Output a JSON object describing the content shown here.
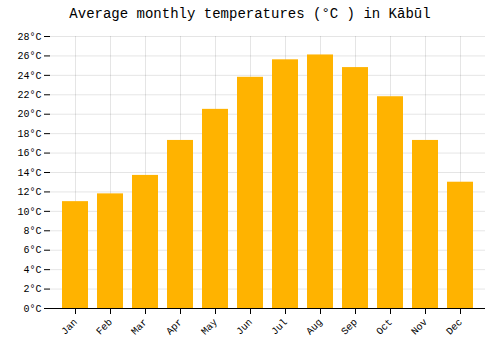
{
  "chart_data": {
    "type": "bar",
    "title": "Average monthly temperatures (°C ) in Kābūl",
    "categories": [
      "Jan",
      "Feb",
      "Mar",
      "Apr",
      "May",
      "Jun",
      "Jul",
      "Aug",
      "Sep",
      "Oct",
      "Nov",
      "Dec"
    ],
    "values": [
      11.0,
      11.8,
      13.7,
      17.3,
      20.5,
      23.8,
      25.6,
      26.1,
      24.8,
      21.8,
      17.3,
      13.0
    ],
    "color": "#FFB300",
    "ylim": [
      0,
      28
    ],
    "yticks": [
      {
        "value": 0,
        "label": "0°C"
      },
      {
        "value": 2,
        "label": "2°C"
      },
      {
        "value": 4,
        "label": "4°C"
      },
      {
        "value": 6,
        "label": "6°C"
      },
      {
        "value": 8,
        "label": "8°C"
      },
      {
        "value": 10,
        "label": "10°C"
      },
      {
        "value": 12,
        "label": "12°C"
      },
      {
        "value": 14,
        "label": "14°C"
      },
      {
        "value": 16,
        "label": "16°C"
      },
      {
        "value": 18,
        "label": "18°C"
      },
      {
        "value": 20,
        "label": "20°C"
      },
      {
        "value": 22,
        "label": "22°C"
      },
      {
        "value": 24,
        "label": "24°C"
      },
      {
        "value": 26,
        "label": "26°C"
      },
      {
        "value": 28,
        "label": "28°C"
      }
    ],
    "grid": true
  }
}
